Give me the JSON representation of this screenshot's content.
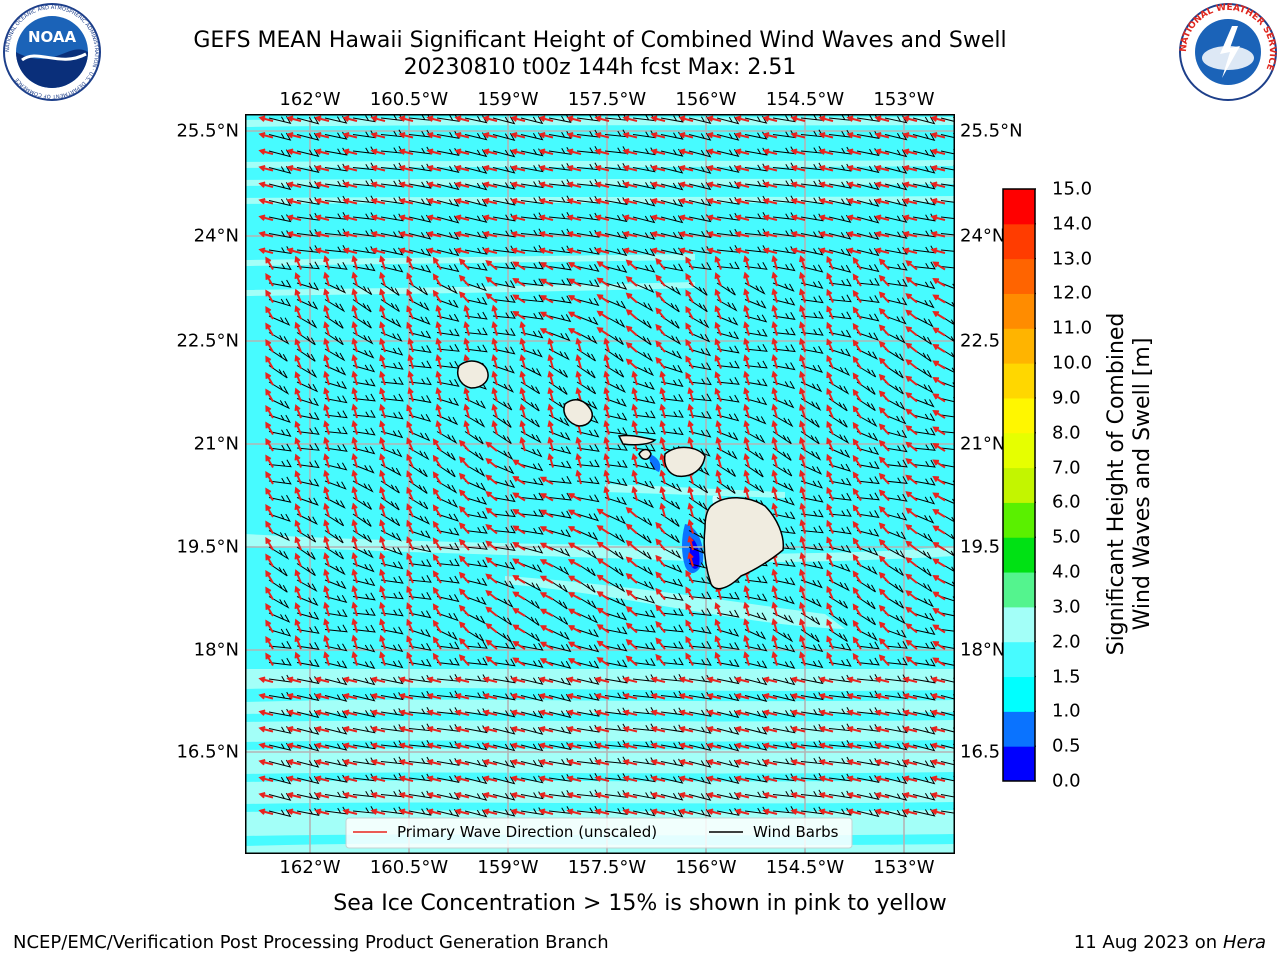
{
  "header": {
    "title_line1": "GEFS MEAN Hawaii Significant Height of Combined Wind Waves and Swell",
    "title_line2": "20230810 t00z 144h fcst   Max: 2.51"
  },
  "logos": {
    "noaa": "NOAA",
    "noaa_ring_text": "NATIONAL OCEANIC AND ATMOSPHERIC ADMINISTRATION · U.S. DEPARTMENT OF COMMERCE",
    "nws_ring_text": "NATIONAL WEATHER SERVICE"
  },
  "map": {
    "lon_labels": [
      "162°W",
      "160.5°W",
      "159°W",
      "157.5°W",
      "156°W",
      "154.5°W",
      "153°W"
    ],
    "lat_labels": [
      "25.5°N",
      "24°N",
      "22.5°N",
      "21°N",
      "19.5°N",
      "18°N",
      "16.5°N"
    ],
    "right_lat_labels": [
      "25.5°N",
      "24°N",
      "22.5",
      "21°N",
      "19.5",
      "18°N",
      "16.5"
    ],
    "lon_range": [
      -163,
      -152.5
    ],
    "lat_range": [
      15,
      25.7
    ],
    "legend": {
      "wave_direction": "Primary Wave Direction (unscaled)",
      "wind_barbs": "Wind Barbs"
    },
    "colors": {
      "ocean_main": "#47fbff",
      "ocean_light": "#a3fff8",
      "land": "#f0ece0",
      "wave_arrow": "#e8231e",
      "wind_barb": "#000000",
      "grid": "#b4b4b4"
    },
    "islands": [
      "Kauai",
      "Oahu",
      "Molokai",
      "Maui",
      "Hawaii"
    ]
  },
  "colorbar": {
    "title_line1": "Significant Height of Combined",
    "title_line2": "Wind Waves and Swell [m]",
    "labels": [
      "0.0",
      "0.5",
      "1.0",
      "1.5",
      "2.0",
      "3.0",
      "4.0",
      "5.0",
      "6.0",
      "7.0",
      "8.0",
      "9.0",
      "10.0",
      "11.0",
      "12.0",
      "13.0",
      "14.0",
      "15.0"
    ],
    "colors": [
      "#0000ff",
      "#0a73ff",
      "#00ffff",
      "#47fbff",
      "#a3fff8",
      "#54f48e",
      "#00e114",
      "#5af000",
      "#c3f500",
      "#e6ff00",
      "#fff700",
      "#ffd700",
      "#ffb400",
      "#ff8c00",
      "#ff6400",
      "#ff3c00",
      "#ff0000"
    ]
  },
  "footer": {
    "sea_ice_note": "Sea Ice Concentration > 15% is shown in pink to yellow",
    "left": "NCEP/EMC/Verification Post Processing Product Generation Branch",
    "date": "11 Aug 2023 on",
    "machine": "Hera"
  }
}
